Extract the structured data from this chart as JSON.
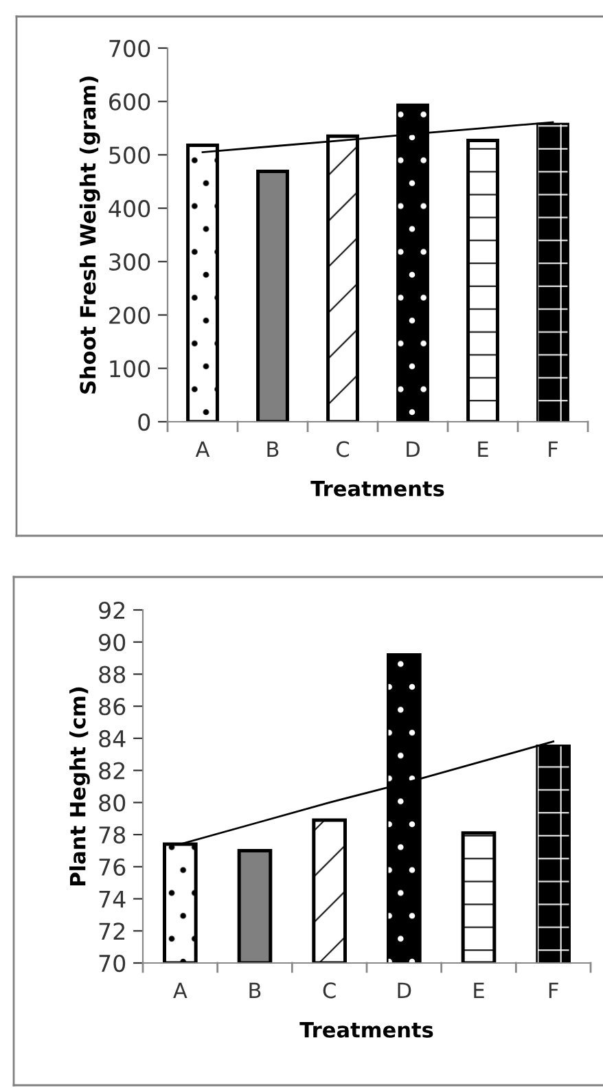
{
  "chart_data": [
    {
      "type": "bar",
      "xlabel": "Treatments",
      "ylabel": "Shoot Fresh Weight (gram)",
      "categories": [
        "A",
        "B",
        "C",
        "D",
        "E",
        "F"
      ],
      "ylim": [
        0,
        700
      ],
      "yticks": [
        0,
        100,
        200,
        300,
        400,
        500,
        600,
        700
      ],
      "grid": false,
      "legend": false,
      "series": [
        {
          "type": "bar",
          "colors": [
            "#ffffff",
            "#808080",
            "#ffffff",
            "#000000",
            "#ffffff",
            "#000000"
          ],
          "values": [
            518,
            469,
            535,
            593,
            527,
            557
          ]
        },
        {
          "type": "line",
          "color": "#000000",
          "values": [
            505,
            516,
            527,
            539,
            550,
            561
          ]
        }
      ]
    },
    {
      "type": "bar",
      "xlabel": "Treatments",
      "ylabel": "Plant Heght (cm)",
      "categories": [
        "A",
        "B",
        "C",
        "D",
        "E",
        "F"
      ],
      "ylim": [
        70,
        92
      ],
      "yticks": [
        70,
        72,
        74,
        76,
        78,
        80,
        82,
        84,
        86,
        88,
        90,
        92
      ],
      "grid": false,
      "legend": false,
      "series": [
        {
          "type": "bar",
          "colors": [
            "#ffffff",
            "#808080",
            "#ffffff",
            "#000000",
            "#ffffff",
            "#000000"
          ],
          "values": [
            77.4,
            77.0,
            78.9,
            89.2,
            78.1,
            83.5
          ]
        },
        {
          "type": "line",
          "color": "#000000",
          "values": [
            77.4,
            78.7,
            80.0,
            81.2,
            82.5,
            83.8
          ]
        }
      ]
    }
  ]
}
